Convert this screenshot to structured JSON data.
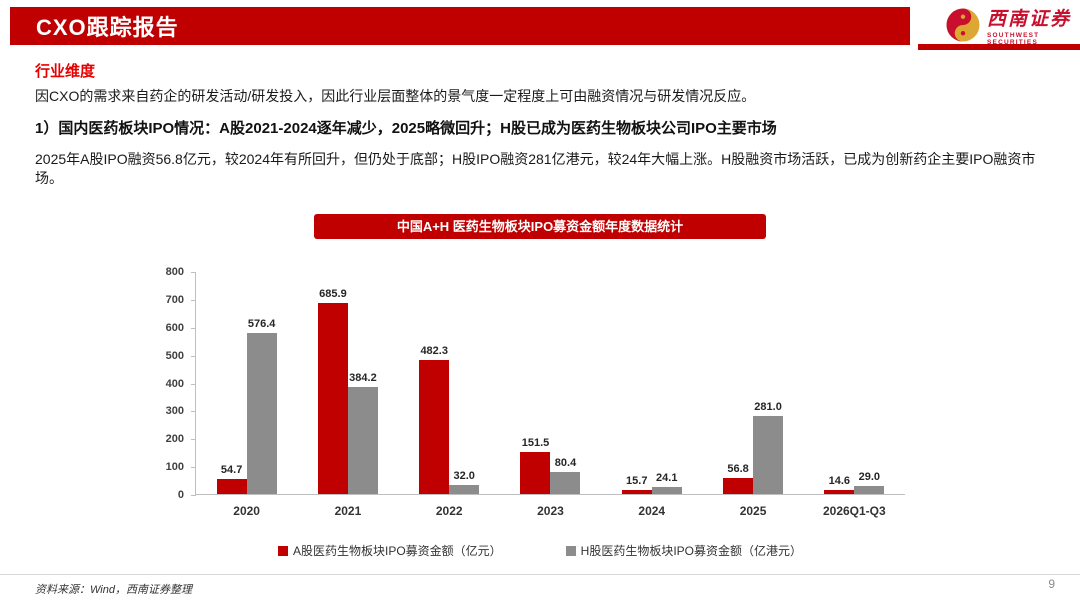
{
  "header": {
    "title": "CXO跟踪报告",
    "logo_name": "西南证券",
    "logo_subtitle": "SOUTHWEST SECURITIES"
  },
  "content": {
    "section_label": "行业维度",
    "intro": "因CXO的需求来自药企的研发活动/研发投入，因此行业层面整体的景气度一定程度上可由融资情况与研发情况反应。",
    "heading": "1）国内医药板块IPO情况：A股2021-2024逐年减少，2025略微回升；H股已成为医药生物板块公司IPO主要市场",
    "paragraph": "2025年A股IPO融资56.8亿元，较2024年有所回升，但仍处于底部；H股IPO融资281亿港元，较24年大幅上涨。H股融资市场活跃，已成为创新药企主要IPO融资市场。"
  },
  "chart_data": {
    "type": "bar",
    "title": "中国A+H 医药生物板块IPO募资金额年度数据统计",
    "categories": [
      "2020",
      "2021",
      "2022",
      "2023",
      "2024",
      "2025",
      "2026Q1-Q3"
    ],
    "series": [
      {
        "name": "A股医药生物板块IPO募资金额（亿元）",
        "color": "#c00000",
        "values": [
          54.7,
          685.9,
          482.3,
          151.5,
          15.7,
          56.8,
          14.6
        ],
        "labels": [
          "54.7",
          "685.9",
          "482.3",
          "151.5",
          "15.7",
          "56.8",
          "14.6"
        ]
      },
      {
        "name": "H股医药生物板块IPO募资金额（亿港元）",
        "color": "#8c8c8c",
        "values": [
          576.4,
          384.2,
          32.0,
          80.4,
          24.1,
          281.0,
          29.0
        ],
        "labels": [
          "576.4",
          "384.2",
          "32.0",
          "80.4",
          "24.1",
          "281.0",
          "29.0"
        ]
      }
    ],
    "ylim": [
      0,
      800
    ],
    "yticks": [
      0,
      100,
      200,
      300,
      400,
      500,
      600,
      700,
      800
    ],
    "grid": false,
    "legend_position": "bottom"
  },
  "footer": {
    "source": "资料来源：Wind，西南证券整理",
    "page": "9"
  }
}
